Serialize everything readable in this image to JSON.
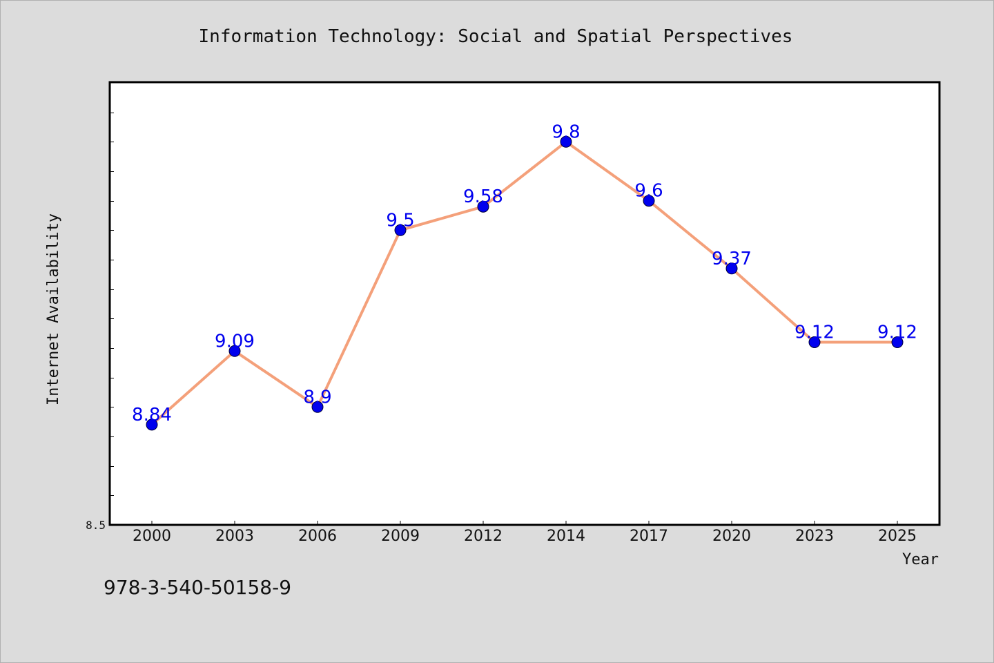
{
  "chart_data": {
    "type": "line",
    "title": "Information Technology: Social and Spatial Perspectives",
    "xlabel": "Year",
    "ylabel": "Internet Availability",
    "categories": [
      "2000",
      "2003",
      "2006",
      "2009",
      "2012",
      "2014",
      "2017",
      "2020",
      "2023",
      "2025"
    ],
    "values": [
      8.84,
      9.09,
      8.9,
      9.5,
      9.58,
      9.8,
      9.6,
      9.37,
      9.12,
      9.12
    ],
    "data_labels": [
      "8.84",
      "9.09",
      "8.9",
      "9.5",
      "9.58",
      "9.8",
      "9.6",
      "9.37",
      "9.12",
      "9.12"
    ],
    "ylim": [
      8.5,
      10.0
    ],
    "y_tick_label": "8.5",
    "grid": false,
    "legend": "none",
    "line_color": "#f4a07a",
    "marker_color": "#0000ee",
    "label_color": "#0000ee"
  },
  "footer": {
    "isbn": "978-3-540-50158-9"
  }
}
